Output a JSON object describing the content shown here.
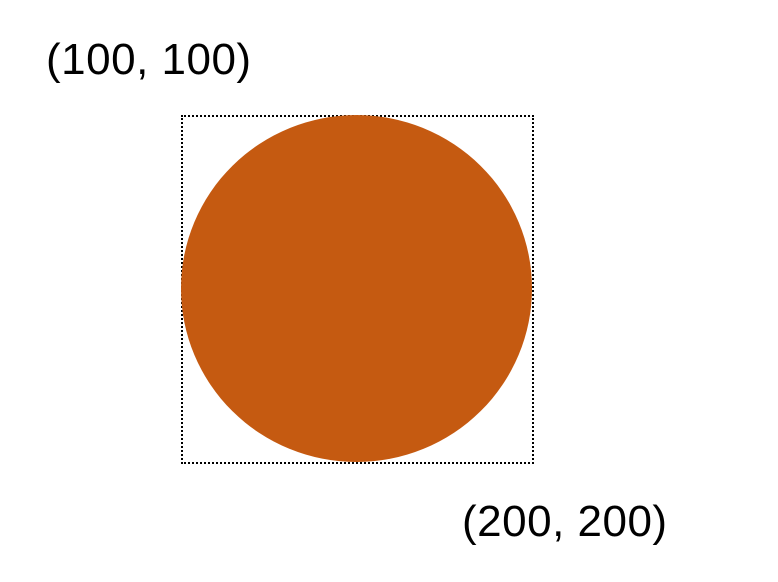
{
  "labels": {
    "top_left_coordinate": "(100, 100)",
    "bottom_right_coordinate": "(200, 200)"
  },
  "colors": {
    "circle_fill": "#C55A11",
    "bounding_box_border": "#000000",
    "label_text": "#000000",
    "background": "#FFFFFF"
  }
}
